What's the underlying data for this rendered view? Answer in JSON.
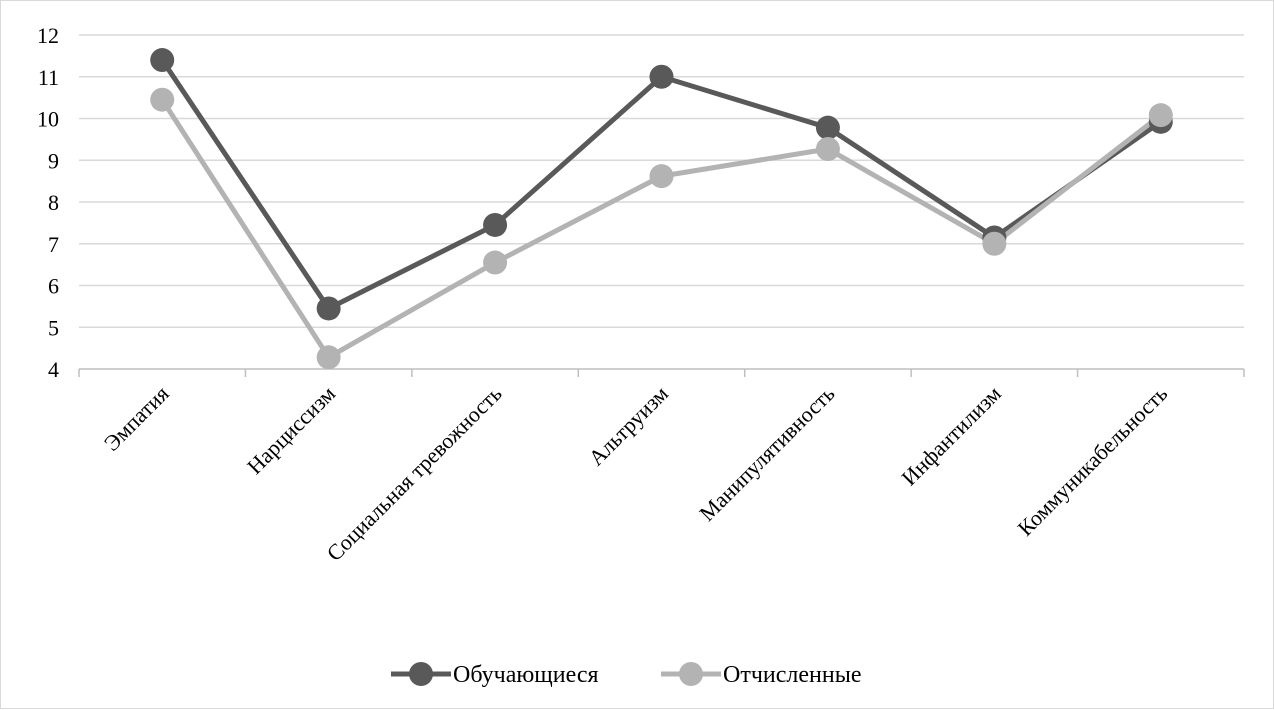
{
  "chart_data": {
    "type": "line",
    "title": "",
    "xlabel": "",
    "ylabel": "",
    "categories": [
      "Эмпатия",
      "Нарциссизм",
      "Социальная тревожность",
      "Альтруизм",
      "Манипулятивность",
      "Инфантилизм",
      "Коммуникабельность"
    ],
    "yticks": [
      "4",
      "5",
      "6",
      "7",
      "8",
      "9",
      "10",
      "11",
      "12"
    ],
    "ylim": [
      4,
      12
    ],
    "grid": true,
    "legend_position": "bottom",
    "series": [
      {
        "name": "Обучающиеся",
        "color": "#595959",
        "values": [
          11.4,
          5.45,
          7.45,
          11.0,
          9.78,
          7.15,
          9.92
        ]
      },
      {
        "name": "Отчисленные",
        "color": "#b3b3b3",
        "values": [
          10.45,
          4.28,
          6.55,
          8.62,
          9.27,
          7.0,
          10.08
        ]
      }
    ]
  }
}
